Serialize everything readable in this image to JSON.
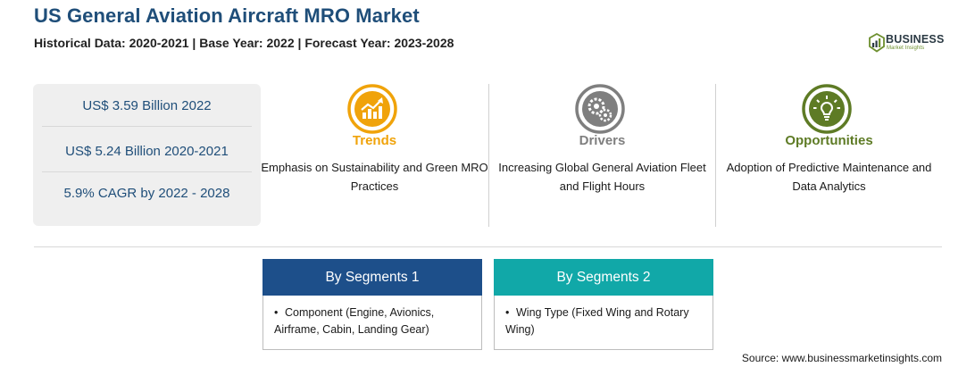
{
  "header": {
    "title": "US General Aviation Aircraft MRO Market",
    "subtitle": "Historical Data: 2020-2021 | Base Year: 2022 | Forecast Year: 2023-2028"
  },
  "logo": {
    "name": "BUSINESS",
    "tagline": "Market Insights",
    "color": "#6d8f2e"
  },
  "stats": [
    "US$ 3.59 Billion 2022",
    "US$ 5.24 Billion 2020-2021",
    "5.9% CAGR by 2022 - 2028"
  ],
  "columns": [
    {
      "heading": "Trends",
      "text": "Emphasis on Sustainability and Green MRO Practices",
      "color": "#f0a30a",
      "icon": "trend-chart-icon"
    },
    {
      "heading": "Drivers",
      "text": "Increasing Global General Aviation Fleet and Flight Hours",
      "color": "#7f7f7f",
      "icon": "gears-icon"
    },
    {
      "heading": "Opportunities",
      "text": "Adoption of Predictive Maintenance and Data Analytics",
      "color": "#5e7b25",
      "icon": "lightbulb-icon"
    }
  ],
  "segments": [
    {
      "heading": "By Segments 1",
      "item": "Component (Engine, Avionics, Airframe, Cabin, Landing Gear)",
      "color": "#1d4f8a"
    },
    {
      "heading": "By Segments 2",
      "item": "Wing Type (Fixed Wing and Rotary Wing)",
      "color": "#11a8a8"
    }
  ],
  "source": "Source: www.businessmarketinsights.com"
}
